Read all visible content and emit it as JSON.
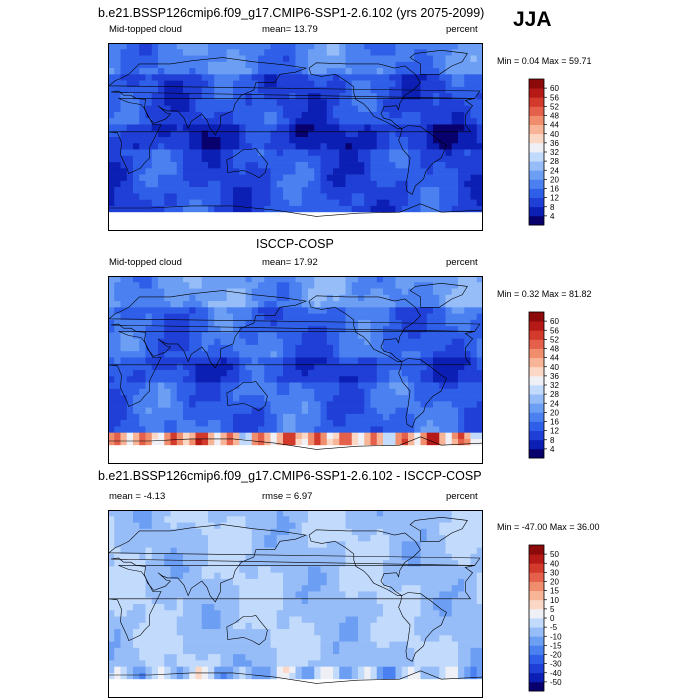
{
  "season": "JJA",
  "panels": [
    {
      "title": "b.e21.BSSP126cmip6.f09_g17.CMIP6-SSP1-2.6.102 (yrs 2075-2099)",
      "left": "Mid-topped cloud",
      "center": "mean=  13.79",
      "right": "percent",
      "minmax": "Min =   0.04 Max =  59.71"
    },
    {
      "title": "ISCCP-COSP",
      "left": "Mid-topped cloud",
      "center": "mean=  17.92",
      "right": "percent",
      "minmax": "Min =   0.32 Max =  81.82"
    },
    {
      "title": "b.e21.BSSP126cmip6.f09_g17.CMIP6-SSP1-2.6.102 - ISCCP-COSP",
      "left": "mean =  -4.13",
      "center": "rmse =   6.97",
      "right": "percent",
      "minmax": "Min = -47.00 Max =  36.00"
    }
  ],
  "chart_data": [
    {
      "type": "heatmap",
      "title": "b.e21.BSSP126cmip6.f09_g17.CMIP6-SSP1-2.6.102 (yrs 2075-2099)",
      "variable": "Mid-topped cloud",
      "units": "percent",
      "mean": 13.79,
      "min": 0.04,
      "max": 59.71,
      "colorbar_levels": [
        4,
        8,
        12,
        16,
        20,
        24,
        28,
        32,
        36,
        40,
        44,
        48,
        52,
        56,
        60
      ],
      "colorbar_colors": [
        "#08006c",
        "#0c1fb4",
        "#1f3fd6",
        "#2f5fe8",
        "#4a80f0",
        "#6c9ef4",
        "#97bdf8",
        "#c2dafb",
        "#eef0f6",
        "#fbd8c6",
        "#f8b497",
        "#f08d6d",
        "#e4604a",
        "#d23a2c",
        "#b51a17",
        "#8c0a0a"
      ]
    },
    {
      "type": "heatmap",
      "title": "ISCCP-COSP",
      "variable": "Mid-topped cloud",
      "units": "percent",
      "mean": 17.92,
      "min": 0.32,
      "max": 81.82,
      "colorbar_levels": [
        4,
        8,
        12,
        16,
        20,
        24,
        28,
        32,
        36,
        40,
        44,
        48,
        52,
        56,
        60
      ],
      "colorbar_colors": [
        "#08006c",
        "#0c1fb4",
        "#1f3fd6",
        "#2f5fe8",
        "#4a80f0",
        "#6c9ef4",
        "#97bdf8",
        "#c2dafb",
        "#eef0f6",
        "#fbd8c6",
        "#f8b497",
        "#f08d6d",
        "#e4604a",
        "#d23a2c",
        "#b51a17",
        "#8c0a0a"
      ]
    },
    {
      "type": "heatmap",
      "title": "b.e21.BSSP126cmip6.f09_g17.CMIP6-SSP1-2.6.102 - ISCCP-COSP",
      "units": "percent",
      "mean": -4.13,
      "rmse": 6.97,
      "min": -47.0,
      "max": 36.0,
      "colorbar_levels": [
        -50,
        -40,
        -30,
        -20,
        -15,
        -10,
        -5,
        0,
        5,
        10,
        15,
        20,
        30,
        40,
        50
      ],
      "colorbar_colors": [
        "#08006c",
        "#0c1fb4",
        "#1f3fd6",
        "#2f5fe8",
        "#4a80f0",
        "#6c9ef4",
        "#97bdf8",
        "#c2dafb",
        "#eef0f6",
        "#fbd8c6",
        "#f8b497",
        "#f08d6d",
        "#e4604a",
        "#d23a2c",
        "#b51a17",
        "#8c0a0a"
      ]
    }
  ]
}
